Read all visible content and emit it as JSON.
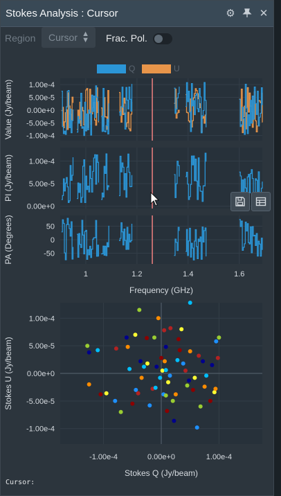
{
  "window": {
    "title": "Stokes Analysis : Cursor",
    "icons": [
      "gear-icon",
      "pin-icon",
      "close-icon"
    ]
  },
  "controls": {
    "region_label": "Region",
    "region_value": "Cursor",
    "frac_pol_label": "Frac. Pol.",
    "frac_pol_on": false
  },
  "legend": [
    {
      "name": "Q",
      "color": "#2b95d6"
    },
    {
      "name": "U",
      "color": "#e8954a"
    }
  ],
  "colors": {
    "q": "#2b95d6",
    "u": "#e8954a",
    "cursor_line": "#f08080",
    "plot_bg": "#27313a"
  },
  "cursor_readout": "Cursor:",
  "chart_data": [
    {
      "type": "line",
      "ylabel": "Value (Jy/beam)",
      "series": [
        {
          "name": "Q"
        },
        {
          "name": "U"
        }
      ],
      "yticks": [
        "1.00e-4",
        "5.00e-5",
        "0.00e+0",
        "-5.00e-5",
        "-1.00e-4"
      ],
      "ylim": [
        -0.00012,
        0.000125
      ],
      "xlim": [
        0.9,
        1.69
      ],
      "cursor_x": 1.26
    },
    {
      "type": "line",
      "ylabel": "PI (Jy/beam)",
      "yticks": [
        "1.00e-4",
        "5.00e-5",
        "0.00e+0"
      ],
      "ylim": [
        -5e-06,
        0.00013
      ],
      "xlim": [
        0.9,
        1.69
      ],
      "cursor_x": 1.26
    },
    {
      "type": "line",
      "ylabel": "PA (Degrees)",
      "yticks": [
        "50",
        "0",
        "-50"
      ],
      "ylim": [
        -90,
        90
      ],
      "xlim": [
        0.9,
        1.69
      ],
      "cursor_x": 1.26,
      "xticks": [
        "1",
        "1.2",
        "1.4",
        "1.6"
      ],
      "xlabel": "Frequency (GHz)"
    },
    {
      "type": "scatter",
      "xlabel": "Stokes Q (Jy/beam)",
      "ylabel": "Stokes U (Jy/beam)",
      "xticks": [
        "-1.00e-4",
        "0.00e+0",
        "1.00e-4"
      ],
      "yticks": [
        "1.00e-4",
        "5.00e-5",
        "0.00e+0",
        "-5.00e-5",
        "-1.00e-4"
      ],
      "xlim": [
        -0.000175,
        0.000175
      ],
      "ylim": [
        -0.000128,
        0.000128
      ],
      "color_scale": [
        "#00008b",
        "#1e90ff",
        "#00bfff",
        "#9acd32",
        "#ffff33",
        "#ff8c00",
        "#b22222",
        "#8b0000"
      ],
      "points": [
        {
          "x": -0.000128,
          "y": 5e-05
        },
        {
          "x": -0.000125,
          "y": 3.8e-05
        },
        {
          "x": -0.000125,
          "y": -2e-05
        },
        {
          "x": -0.00011,
          "y": 4.2e-05
        },
        {
          "x": -0.000105,
          "y": -3.8e-05
        },
        {
          "x": -9.5e-05,
          "y": -3.6e-05
        },
        {
          "x": -8e-05,
          "y": -5e-05
        },
        {
          "x": -7.8e-05,
          "y": 4.5e-05
        },
        {
          "x": -7e-05,
          "y": -7e-05
        },
        {
          "x": -6e-05,
          "y": 6.5e-05
        },
        {
          "x": -5.8e-05,
          "y": 4.8e-05
        },
        {
          "x": -5.5e-05,
          "y": 8e-06
        },
        {
          "x": -5e-05,
          "y": -5.5e-05
        },
        {
          "x": -4.5e-05,
          "y": 7e-05
        },
        {
          "x": -4.4e-05,
          "y": -3e-05
        },
        {
          "x": -4e-05,
          "y": -3.6e-05
        },
        {
          "x": -3.8e-05,
          "y": 0.000115
        },
        {
          "x": -3.6e-05,
          "y": 2.2e-05
        },
        {
          "x": -3.4e-05,
          "y": -8e-06
        },
        {
          "x": -3e-05,
          "y": 1.2e-05
        },
        {
          "x": -2.5e-05,
          "y": 6.4e-05
        },
        {
          "x": -2.4e-05,
          "y": 1.8e-05
        },
        {
          "x": -2e-05,
          "y": -5.8e-05
        },
        {
          "x": -1.5e-05,
          "y": -2.8e-05
        },
        {
          "x": -1.2e-05,
          "y": 6.5e-05
        },
        {
          "x": -8e-06,
          "y": 1.2e-05
        },
        {
          "x": -5e-06,
          "y": 0.0001
        },
        {
          "x": -2e-06,
          "y": -8e-06
        },
        {
          "x": 0.0,
          "y": 2.8e-05
        },
        {
          "x": 2e-06,
          "y": 5e-06
        },
        {
          "x": 4e-06,
          "y": -3.8e-05
        },
        {
          "x": 5e-06,
          "y": 7.8e-05
        },
        {
          "x": 8e-06,
          "y": -4e-05
        },
        {
          "x": 8e-06,
          "y": 4.8e-05
        },
        {
          "x": 6e-06,
          "y": 2.2e-05
        },
        {
          "x": 8e-06,
          "y": 6e-06
        },
        {
          "x": 1e-05,
          "y": -6.8e-05
        },
        {
          "x": 1.2e-05,
          "y": -1.6e-05
        },
        {
          "x": 1.5e-05,
          "y": -4e-06
        },
        {
          "x": 1.6e-05,
          "y": 8.2e-05
        },
        {
          "x": 2e-05,
          "y": -5e-05
        },
        {
          "x": 2.2e-05,
          "y": -8.6e-05
        },
        {
          "x": 2.5e-05,
          "y": -3.8e-05
        },
        {
          "x": 2.8e-05,
          "y": 2.4e-05
        },
        {
          "x": 3.2e-05,
          "y": 4.2e-05
        },
        {
          "x": 3.5e-05,
          "y": 8e-05
        },
        {
          "x": 3.8e-05,
          "y": 1.8e-05
        },
        {
          "x": 4.2e-05,
          "y": 5e-06
        },
        {
          "x": 4.5e-05,
          "y": -2.2e-05
        },
        {
          "x": 4.8e-05,
          "y": -1.3e-05
        },
        {
          "x": 5e-05,
          "y": 4e-05
        },
        {
          "x": 5e-05,
          "y": 0.000128
        },
        {
          "x": 5.5e-05,
          "y": -3e-05
        },
        {
          "x": 5.8e-05,
          "y": -8e-06
        },
        {
          "x": 6.2e-05,
          "y": -9.8e-05
        },
        {
          "x": 6.5e-05,
          "y": 3.2e-05
        },
        {
          "x": 6.8e-05,
          "y": -6e-05
        },
        {
          "x": 7.2e-05,
          "y": 2.2e-05
        },
        {
          "x": 7.5e-05,
          "y": -2.4e-05
        },
        {
          "x": 7.8e-05,
          "y": -4e-06
        },
        {
          "x": 8.5e-05,
          "y": -5e-05
        },
        {
          "x": 9.2e-05,
          "y": -3.4e-05
        },
        {
          "x": 9.5e-05,
          "y": 5.8e-05
        },
        {
          "x": 9.8e-05,
          "y": 2.8e-05
        },
        {
          "x": 0.0001,
          "y": 6.5e-05
        },
        {
          "x": 8.8e-05,
          "y": 1.5e-05
        },
        {
          "x": 9.4e-05,
          "y": -2.8e-05
        },
        {
          "x": -1e-05,
          "y": -2.6e-05
        },
        {
          "x": 3e-05,
          "y": 6.2e-05
        }
      ]
    }
  ]
}
